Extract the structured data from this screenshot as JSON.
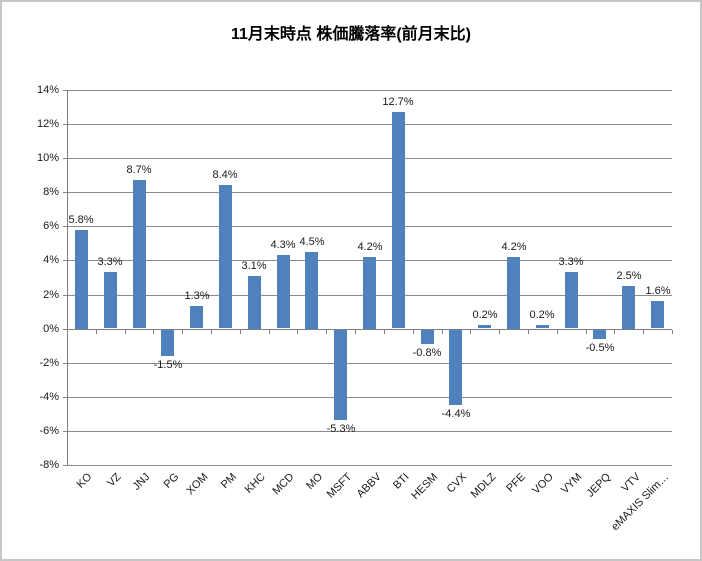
{
  "title": "11月末時点 株価騰落率(前月末比)",
  "chart_data": {
    "type": "bar",
    "title": "11月末時点 株価騰落率(前月末比)",
    "categories": [
      "KO",
      "VZ",
      "JNJ",
      "PG",
      "XOM",
      "PM",
      "KHC",
      "MCD",
      "MO",
      "MSFT",
      "ABBV",
      "BTI",
      "HESM",
      "CVX",
      "MDLZ",
      "PFE",
      "VOO",
      "VYM",
      "JEPQ",
      "VTV",
      "eMAXIS Slim…"
    ],
    "values": [
      5.8,
      3.3,
      8.7,
      -1.5,
      1.3,
      8.4,
      3.1,
      4.3,
      4.5,
      -5.3,
      4.2,
      12.7,
      -0.8,
      -4.4,
      0.2,
      4.2,
      0.2,
      3.3,
      -0.5,
      2.5,
      1.6
    ],
    "data_labels": [
      "5.8%",
      "3.3%",
      "8.7%",
      "-1.5%",
      "1.3%",
      "8.4%",
      "3.1%",
      "4.3%",
      "4.5%",
      "-5.3%",
      "4.2%",
      "12.7%",
      "-0.8%",
      "-4.4%",
      "0.2%",
      "4.2%",
      "0.2%",
      "3.3%",
      "-0.5%",
      "2.5%",
      "1.6%"
    ],
    "xlabel": "",
    "ylabel": "",
    "ylim": [
      -8,
      14
    ],
    "ytick_step": 2,
    "ytick_labels": [
      "14%",
      "12%",
      "10%",
      "8%",
      "6%",
      "4%",
      "2%",
      "0%",
      "-2%",
      "-4%",
      "-6%",
      "-8%"
    ],
    "grid": true,
    "legend": false
  },
  "colors": {
    "bar": "#4F81BD",
    "gridline": "#8a8a8a",
    "axis": "#7f7f7f",
    "text": "#1a1a1a",
    "border": "#c6c6c6",
    "background": "#ffffff"
  }
}
